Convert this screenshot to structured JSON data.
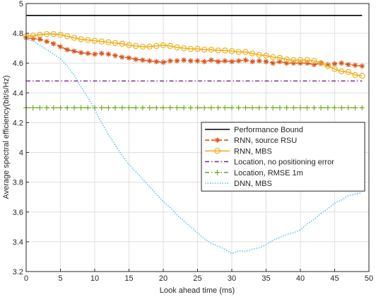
{
  "chart_data": {
    "type": "line",
    "title": "",
    "xlabel": "Look ahead time (ms)",
    "ylabel": "Average spectral efficiency(bit/s/Hz)",
    "xlim": [
      0,
      50
    ],
    "ylim": [
      3.2,
      5
    ],
    "xticks": [
      "0",
      "5",
      "10",
      "15",
      "20",
      "25",
      "30",
      "35",
      "40",
      "45",
      "50"
    ],
    "yticks": [
      "3.2",
      "3.4",
      "3.6",
      "3.8",
      "4",
      "4.2",
      "4.4",
      "4.6",
      "4.8",
      "5"
    ],
    "grid": true,
    "legend_position": "center-right",
    "series": [
      {
        "name": "Performance Bound",
        "color": "#000000",
        "style": "solid",
        "marker": "none",
        "x": [
          0,
          49
        ],
        "y": [
          4.92,
          4.92
        ]
      },
      {
        "name": "RNN, source RSU",
        "color": "#d95319",
        "style": "dashed",
        "marker": "asterisk",
        "x": [
          0,
          1,
          2,
          3,
          4,
          5,
          6,
          7,
          8,
          9,
          10,
          11,
          12,
          13,
          14,
          15,
          16,
          17,
          18,
          19,
          20,
          21,
          22,
          23,
          24,
          25,
          26,
          27,
          28,
          29,
          30,
          31,
          32,
          33,
          34,
          35,
          36,
          37,
          38,
          39,
          40,
          41,
          42,
          43,
          44,
          45,
          46,
          47,
          48,
          49
        ],
        "y": [
          4.77,
          4.765,
          4.76,
          4.745,
          4.73,
          4.71,
          4.69,
          4.68,
          4.67,
          4.665,
          4.66,
          4.665,
          4.66,
          4.65,
          4.64,
          4.635,
          4.625,
          4.62,
          4.615,
          4.61,
          4.605,
          4.615,
          4.615,
          4.62,
          4.615,
          4.615,
          4.61,
          4.62,
          4.61,
          4.615,
          4.61,
          4.615,
          4.62,
          4.61,
          4.615,
          4.61,
          4.6,
          4.61,
          4.6,
          4.6,
          4.6,
          4.6,
          4.59,
          4.6,
          4.59,
          4.595,
          4.6,
          4.59,
          4.585,
          4.58
        ]
      },
      {
        "name": "RNN, MBS",
        "color": "#edb120",
        "style": "solid",
        "marker": "circle",
        "x": [
          0,
          1,
          2,
          3,
          4,
          5,
          6,
          7,
          8,
          9,
          10,
          11,
          12,
          13,
          14,
          15,
          16,
          17,
          18,
          19,
          20,
          21,
          22,
          23,
          24,
          25,
          26,
          27,
          28,
          29,
          30,
          31,
          32,
          33,
          34,
          35,
          36,
          37,
          38,
          39,
          40,
          41,
          42,
          43,
          44,
          45,
          46,
          47,
          48,
          49
        ],
        "y": [
          4.78,
          4.785,
          4.79,
          4.795,
          4.795,
          4.79,
          4.78,
          4.77,
          4.76,
          4.755,
          4.75,
          4.745,
          4.74,
          4.735,
          4.73,
          4.72,
          4.715,
          4.71,
          4.71,
          4.715,
          4.72,
          4.715,
          4.705,
          4.7,
          4.695,
          4.695,
          4.69,
          4.69,
          4.685,
          4.685,
          4.68,
          4.675,
          4.675,
          4.665,
          4.655,
          4.65,
          4.64,
          4.635,
          4.625,
          4.62,
          4.62,
          4.62,
          4.615,
          4.6,
          4.58,
          4.56,
          4.545,
          4.54,
          4.52,
          4.515
        ]
      },
      {
        "name": "Location, no positioning error",
        "color": "#7e2f8e",
        "style": "dashdot",
        "marker": "none",
        "x": [
          0,
          49
        ],
        "y": [
          4.48,
          4.48
        ]
      },
      {
        "name": "Location, RMSE 1m",
        "color": "#77ac30",
        "style": "dashdot",
        "marker": "plus",
        "x": [
          0,
          1,
          2,
          3,
          4,
          5,
          6,
          7,
          8,
          9,
          10,
          11,
          12,
          13,
          14,
          15,
          16,
          17,
          18,
          19,
          20,
          21,
          22,
          23,
          24,
          25,
          26,
          27,
          28,
          29,
          30,
          31,
          32,
          33,
          34,
          35,
          36,
          37,
          38,
          39,
          40,
          41,
          42,
          43,
          44,
          45,
          46,
          47,
          48,
          49
        ],
        "y": [
          4.3,
          4.3,
          4.3,
          4.3,
          4.3,
          4.3,
          4.3,
          4.3,
          4.3,
          4.3,
          4.3,
          4.3,
          4.3,
          4.3,
          4.3,
          4.3,
          4.3,
          4.3,
          4.3,
          4.3,
          4.3,
          4.3,
          4.3,
          4.3,
          4.3,
          4.3,
          4.3,
          4.3,
          4.3,
          4.3,
          4.3,
          4.3,
          4.3,
          4.3,
          4.3,
          4.3,
          4.3,
          4.3,
          4.3,
          4.3,
          4.3,
          4.3,
          4.3,
          4.3,
          4.3,
          4.3,
          4.3,
          4.3,
          4.3,
          4.3
        ]
      },
      {
        "name": "DNN, MBS",
        "color": "#4dbeee",
        "style": "dotted",
        "marker": "none",
        "x": [
          0,
          1,
          2,
          3,
          4,
          5,
          6,
          7,
          8,
          9,
          10,
          11,
          12,
          13,
          14,
          15,
          16,
          17,
          18,
          19,
          20,
          21,
          22,
          23,
          24,
          25,
          26,
          27,
          28,
          29,
          30,
          31,
          32,
          33,
          34,
          35,
          36,
          37,
          38,
          39,
          40,
          41,
          42,
          43,
          44,
          45,
          46,
          47,
          48,
          49
        ],
        "y": [
          4.76,
          4.75,
          4.72,
          4.69,
          4.66,
          4.63,
          4.58,
          4.52,
          4.44,
          4.37,
          4.29,
          4.2,
          4.12,
          4.05,
          3.98,
          3.92,
          3.87,
          3.82,
          3.77,
          3.72,
          3.67,
          3.63,
          3.58,
          3.54,
          3.5,
          3.46,
          3.42,
          3.39,
          3.37,
          3.35,
          3.32,
          3.34,
          3.335,
          3.35,
          3.36,
          3.38,
          3.41,
          3.43,
          3.45,
          3.46,
          3.48,
          3.52,
          3.55,
          3.59,
          3.62,
          3.66,
          3.68,
          3.71,
          3.72,
          3.73
        ]
      }
    ]
  }
}
